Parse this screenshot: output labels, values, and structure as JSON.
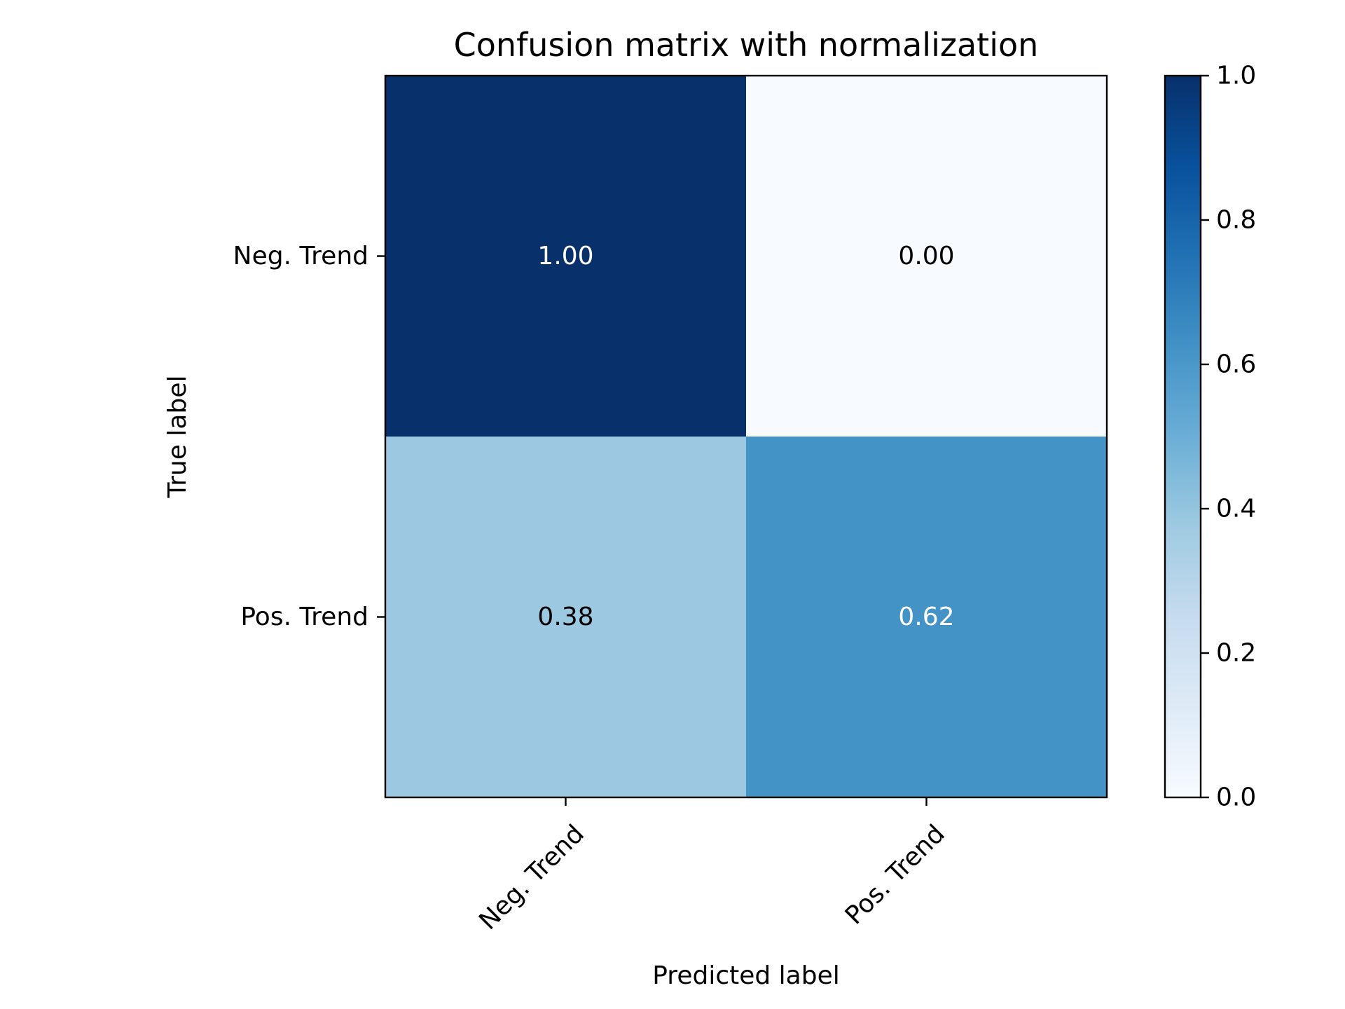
{
  "chart_data": {
    "type": "heatmap",
    "title": "Confusion matrix with normalization",
    "xlabel": "Predicted label",
    "ylabel": "True label",
    "x_categories": [
      "Neg. Trend",
      "Pos. Trend"
    ],
    "y_categories": [
      "Neg. Trend",
      "Pos. Trend"
    ],
    "values": [
      [
        1.0,
        0.0
      ],
      [
        0.38,
        0.62
      ]
    ],
    "value_labels": [
      [
        "1.00",
        "0.00"
      ],
      [
        "0.38",
        "0.62"
      ]
    ],
    "colormap": "Blues",
    "color_range": [
      0.0,
      1.0
    ],
    "colorbar_ticks": [
      "0.0",
      "0.2",
      "0.4",
      "0.6",
      "0.8",
      "1.0"
    ],
    "colorbar_stops": [
      "#f7fbff",
      "#deebf7",
      "#c6dbef",
      "#9ecae1",
      "#6baed6",
      "#4292c6",
      "#2171b5",
      "#08519c",
      "#08306b"
    ],
    "cell_text_colors": {
      "dark": "#ffffff",
      "light": "#000000"
    },
    "grid": false,
    "x_tick_rotation_deg": 45
  }
}
